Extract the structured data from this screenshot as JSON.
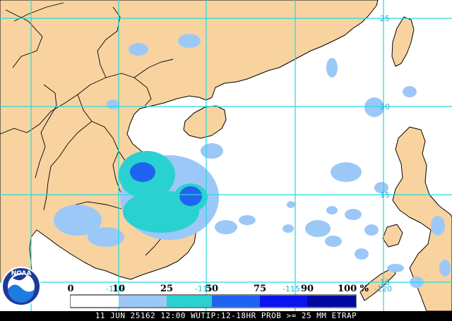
{
  "map": {
    "lat_labels": [
      "25",
      "20",
      "15",
      "10"
    ],
    "lon_labels": [
      "-115",
      "-115",
      "-115",
      "-120"
    ],
    "colors": {
      "land": "#f8d3a0",
      "ocean": "#ffffff",
      "grid": "#26d9d9",
      "border": "#000000"
    }
  },
  "legend": {
    "ticks": [
      "0",
      "10",
      "25",
      "50",
      "75",
      "90",
      "100 %"
    ],
    "bins": [
      {
        "range": "0-10",
        "color": "#ffffff"
      },
      {
        "range": "10-25",
        "color": "#9cc8f8"
      },
      {
        "range": "25-50",
        "color": "#2ad1d1"
      },
      {
        "range": "50-75",
        "color": "#1e64f0"
      },
      {
        "range": "75-90",
        "color": "#0a14ee"
      },
      {
        "range": "90-100",
        "color": "#000aa0"
      }
    ]
  },
  "logo": {
    "text": "NOAA",
    "icon": "noaa-logo-icon"
  },
  "caption": "11 JUN 25162 12:00 WUTIP:12-18HR PROB >= 25 MM ETRAP"
}
